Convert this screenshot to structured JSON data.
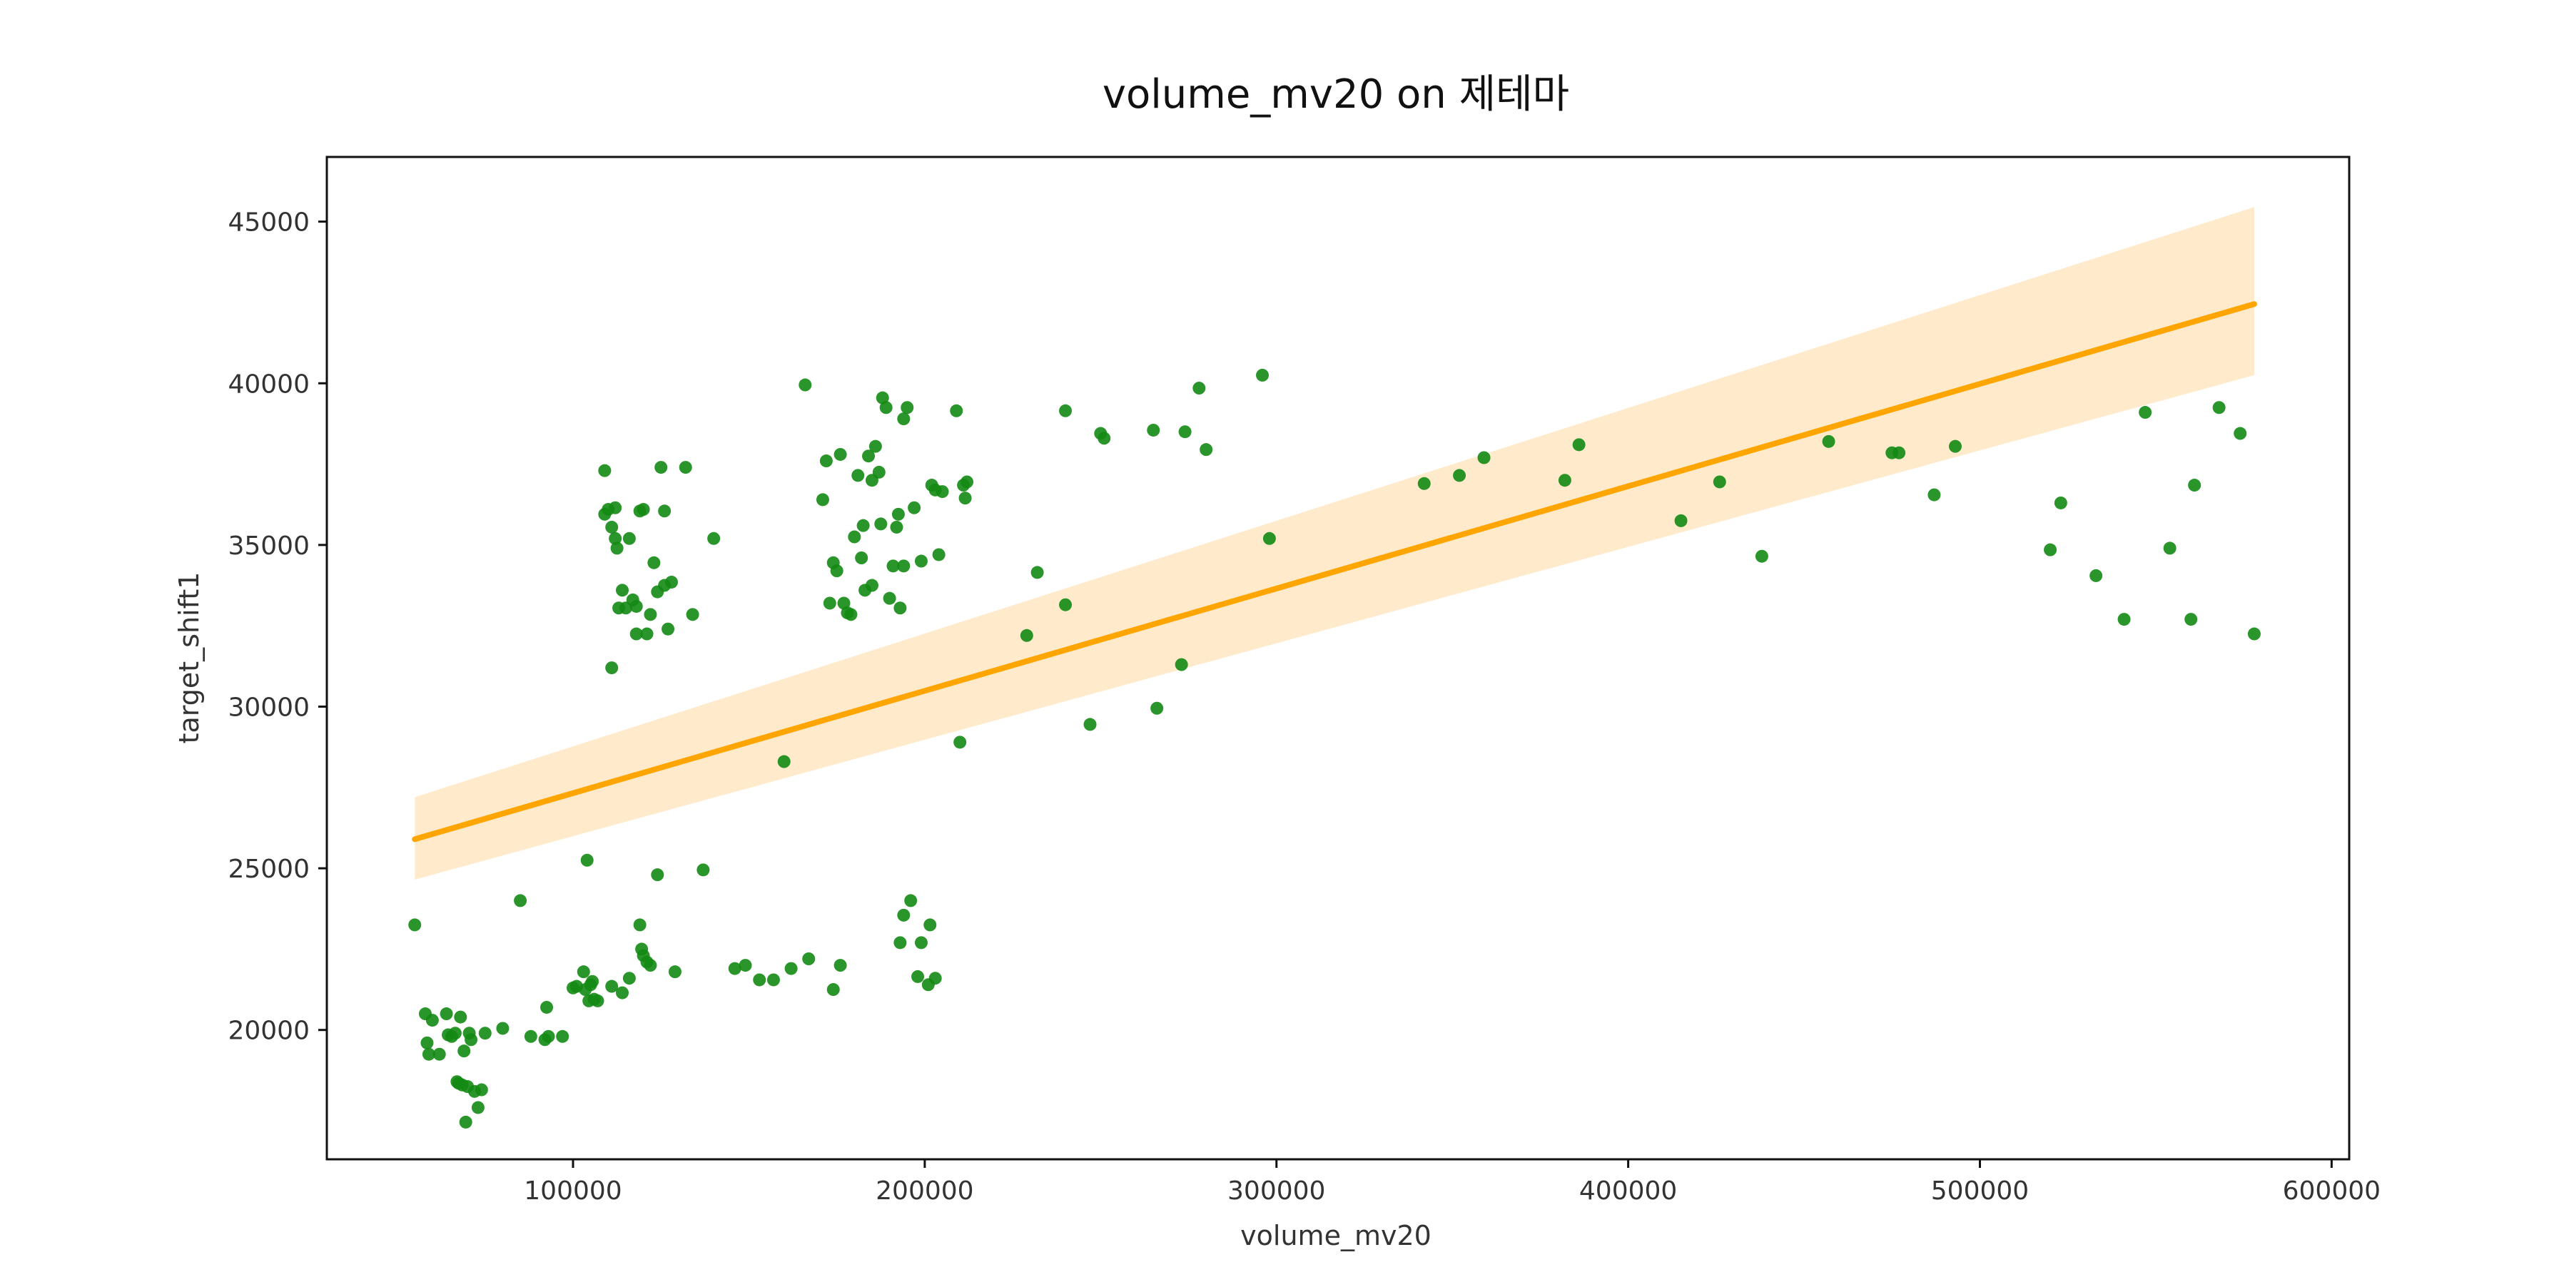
{
  "chart_data": {
    "type": "scatter",
    "title": "volume_mv20 on 제테마",
    "xlabel": "volume_mv20",
    "ylabel": "target_shift1",
    "xlim": [
      30000,
      605000
    ],
    "ylim": [
      16000,
      47000
    ],
    "x_ticks": [
      100000,
      200000,
      300000,
      400000,
      500000,
      600000
    ],
    "y_ticks": [
      20000,
      25000,
      30000,
      35000,
      40000,
      45000
    ],
    "grid": false,
    "colors": {
      "points": "#138a13",
      "regression_line": "#ffa500",
      "confidence_band": "#ffebcc"
    },
    "regression": {
      "x": [
        55000,
        578000
      ],
      "y": [
        25900,
        42450
      ],
      "ci_lower": [
        24650,
        40250
      ],
      "ci_upper": [
        27200,
        45450
      ]
    },
    "points": [
      [
        55000,
        23250
      ],
      [
        58000,
        20500
      ],
      [
        58500,
        19600
      ],
      [
        59000,
        19250
      ],
      [
        60000,
        20300
      ],
      [
        62000,
        19250
      ],
      [
        64000,
        20500
      ],
      [
        64500,
        19850
      ],
      [
        65500,
        19800
      ],
      [
        66500,
        19900
      ],
      [
        67000,
        18400
      ],
      [
        67500,
        18350
      ],
      [
        68000,
        20400
      ],
      [
        68500,
        18300
      ],
      [
        69000,
        19350
      ],
      [
        69500,
        17150
      ],
      [
        70000,
        18250
      ],
      [
        70500,
        19900
      ],
      [
        71000,
        19700
      ],
      [
        72000,
        18100
      ],
      [
        73000,
        17600
      ],
      [
        74000,
        18150
      ],
      [
        75000,
        19900
      ],
      [
        80000,
        20050
      ],
      [
        85000,
        24000
      ],
      [
        88000,
        19800
      ],
      [
        92000,
        19700
      ],
      [
        93000,
        19800
      ],
      [
        92500,
        20700
      ],
      [
        97000,
        19800
      ],
      [
        100000,
        21300
      ],
      [
        101000,
        21350
      ],
      [
        103000,
        21800
      ],
      [
        103500,
        21250
      ],
      [
        104000,
        25250
      ],
      [
        104500,
        20900
      ],
      [
        105000,
        21400
      ],
      [
        105500,
        21500
      ],
      [
        106000,
        20950
      ],
      [
        107000,
        20900
      ],
      [
        111000,
        21350
      ],
      [
        114000,
        21150
      ],
      [
        116000,
        21600
      ],
      [
        119000,
        23250
      ],
      [
        119500,
        22500
      ],
      [
        120000,
        22300
      ],
      [
        121000,
        22100
      ],
      [
        122000,
        22000
      ],
      [
        124000,
        24800
      ],
      [
        129000,
        21800
      ],
      [
        137000,
        24950
      ],
      [
        146000,
        21900
      ],
      [
        149000,
        22000
      ],
      [
        153000,
        21550
      ],
      [
        157000,
        21550
      ],
      [
        162000,
        21900
      ],
      [
        167000,
        22200
      ],
      [
        174000,
        21250
      ],
      [
        176000,
        22000
      ],
      [
        193000,
        22700
      ],
      [
        194000,
        23550
      ],
      [
        196000,
        24000
      ],
      [
        198000,
        21650
      ],
      [
        199000,
        22700
      ],
      [
        201000,
        21400
      ],
      [
        201500,
        23250
      ],
      [
        203000,
        21600
      ],
      [
        109000,
        37300
      ],
      [
        109000,
        35950
      ],
      [
        111000,
        35550
      ],
      [
        111000,
        31200
      ],
      [
        112000,
        35200
      ],
      [
        112500,
        34900
      ],
      [
        113000,
        33050
      ],
      [
        114000,
        33600
      ],
      [
        115000,
        33050
      ],
      [
        116000,
        35200
      ],
      [
        117000,
        33300
      ],
      [
        118000,
        33100
      ],
      [
        118000,
        32250
      ],
      [
        119000,
        36050
      ],
      [
        120000,
        36100
      ],
      [
        121000,
        32250
      ],
      [
        122000,
        32850
      ],
      [
        123000,
        34450
      ],
      [
        124000,
        33550
      ],
      [
        125000,
        37400
      ],
      [
        126000,
        33750
      ],
      [
        126000,
        36050
      ],
      [
        127000,
        32400
      ],
      [
        128000,
        33850
      ],
      [
        132000,
        37400
      ],
      [
        134000,
        32850
      ],
      [
        140000,
        35200
      ],
      [
        110000,
        36100
      ],
      [
        112000,
        36150
      ],
      [
        171000,
        36400
      ],
      [
        172000,
        37600
      ],
      [
        173000,
        33200
      ],
      [
        174000,
        34450
      ],
      [
        175000,
        34200
      ],
      [
        176000,
        37800
      ],
      [
        177000,
        33200
      ],
      [
        178000,
        32900
      ],
      [
        179000,
        32850
      ],
      [
        180000,
        35250
      ],
      [
        181000,
        37150
      ],
      [
        182000,
        34600
      ],
      [
        182500,
        35600
      ],
      [
        183000,
        33600
      ],
      [
        184000,
        37750
      ],
      [
        185000,
        37000
      ],
      [
        185000,
        33750
      ],
      [
        186000,
        38050
      ],
      [
        187000,
        37250
      ],
      [
        187500,
        35650
      ],
      [
        188000,
        39550
      ],
      [
        189000,
        39250
      ],
      [
        190000,
        33350
      ],
      [
        191000,
        34350
      ],
      [
        192000,
        35550
      ],
      [
        192500,
        35950
      ],
      [
        193000,
        33050
      ],
      [
        194000,
        38900
      ],
      [
        195000,
        39250
      ],
      [
        194000,
        34350
      ],
      [
        197000,
        36150
      ],
      [
        199000,
        34500
      ],
      [
        202000,
        36850
      ],
      [
        203000,
        36700
      ],
      [
        204000,
        34700
      ],
      [
        205000,
        36650
      ],
      [
        209000,
        39150
      ],
      [
        210000,
        28900
      ],
      [
        211000,
        36850
      ],
      [
        211500,
        36450
      ],
      [
        212000,
        36950
      ],
      [
        166000,
        39950
      ],
      [
        160000,
        28300
      ],
      [
        229000,
        32200
      ],
      [
        232000,
        34150
      ],
      [
        240000,
        39150
      ],
      [
        240000,
        33150
      ],
      [
        247000,
        29450
      ],
      [
        250000,
        38450
      ],
      [
        251000,
        38300
      ],
      [
        265000,
        38550
      ],
      [
        266000,
        29950
      ],
      [
        273000,
        31300
      ],
      [
        274000,
        38500
      ],
      [
        278000,
        39850
      ],
      [
        280000,
        37950
      ],
      [
        296000,
        40250
      ],
      [
        298000,
        35200
      ],
      [
        342000,
        36900
      ],
      [
        352000,
        37150
      ],
      [
        359000,
        37700
      ],
      [
        382000,
        37000
      ],
      [
        386000,
        38100
      ],
      [
        415000,
        35750
      ],
      [
        426000,
        36950
      ],
      [
        438000,
        34650
      ],
      [
        457000,
        38200
      ],
      [
        475000,
        37850
      ],
      [
        477000,
        37850
      ],
      [
        487000,
        36550
      ],
      [
        493000,
        38050
      ],
      [
        520000,
        34850
      ],
      [
        523000,
        36300
      ],
      [
        533000,
        34050
      ],
      [
        541000,
        32700
      ],
      [
        547000,
        39100
      ],
      [
        554000,
        34900
      ],
      [
        560000,
        32700
      ],
      [
        561000,
        36850
      ],
      [
        568000,
        39250
      ],
      [
        574000,
        38450
      ],
      [
        578000,
        32250
      ]
    ]
  }
}
